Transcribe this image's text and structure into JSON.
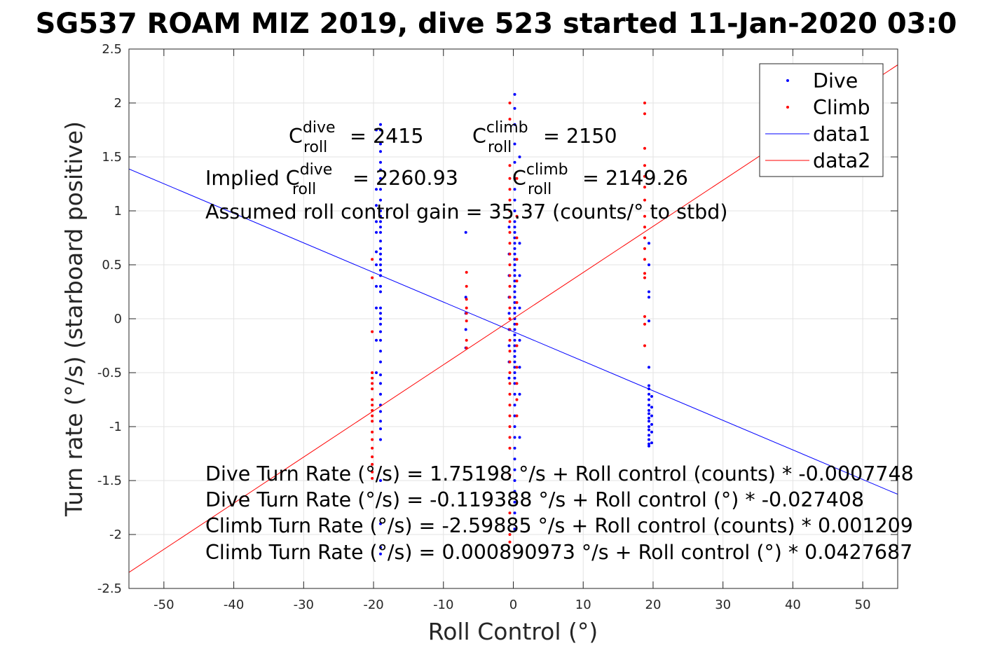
{
  "chart_data": {
    "type": "scatter",
    "title": "SG537 ROAM MIZ 2019, dive 523 started 11-Jan-2020 03:0",
    "xlabel": "Roll Control (°)",
    "ylabel": "Turn rate (°/s) (starboard positive)",
    "xlim": [
      -55,
      55
    ],
    "ylim": [
      -2.5,
      2.5
    ],
    "xticks": [
      -50,
      -40,
      -30,
      -20,
      -10,
      0,
      10,
      20,
      30,
      40,
      50
    ],
    "yticks": [
      2.5,
      2,
      1.5,
      1,
      0.5,
      0,
      -0.5,
      -1,
      -1.5,
      -2,
      -2.5
    ],
    "xtick_labels": [
      "-50",
      "-40",
      "-30",
      "-20",
      "-10",
      "0",
      "10",
      "20",
      "30",
      "40",
      "50"
    ],
    "ytick_labels": [
      "2.5",
      "2",
      "1.5",
      "1",
      "0.5",
      "0",
      "-0.5",
      "-1",
      "-1.5",
      "-2",
      "-2.5"
    ],
    "grid": true,
    "legend_position": "top-right",
    "legend": [
      "Dive",
      "Climb",
      "data1",
      "data2"
    ],
    "series": [
      {
        "name": "Dive",
        "kind": "points",
        "color": "#0000ff",
        "clusters": [
          {
            "x": -19,
            "y": [
              1.8,
              1.75,
              1.62,
              1.55,
              1.45,
              1.38,
              1.3,
              1.2,
              1.1,
              1.0,
              0.95,
              0.9,
              0.85,
              0.8,
              0.72,
              0.65,
              0.6,
              0.55,
              0.5,
              0.45,
              0.4,
              0.3,
              0.25,
              0.1,
              0.05,
              0.0,
              -0.05,
              -0.12,
              -0.2,
              -0.3,
              -0.4,
              -0.52,
              -0.6,
              -0.7,
              -0.8,
              -0.86,
              -0.95,
              -1.02,
              -1.12,
              -1.5,
              -1.9,
              -2.12,
              -2.18
            ]
          },
          {
            "x": -19.6,
            "y": [
              1.75,
              1.2,
              1.05,
              0.9,
              0.8,
              0.62,
              0.5,
              0.3,
              0.1,
              -0.2,
              -0.5
            ]
          },
          {
            "x": -6.8,
            "y": [
              0.8,
              0.2,
              0.05,
              -0.1,
              -0.27
            ]
          },
          {
            "x": 0.2,
            "y": [
              2.08,
              1.95,
              1.8,
              1.62,
              1.45,
              1.3,
              1.2,
              1.1,
              1.0,
              0.9,
              0.85,
              0.8,
              0.75,
              0.7,
              0.65,
              0.6,
              0.55,
              0.5,
              0.45,
              0.4,
              0.35,
              0.3,
              0.25,
              0.2,
              0.15,
              0.1,
              0.05,
              0.0,
              -0.05,
              -0.1,
              -0.15,
              -0.2,
              -0.25,
              -0.3,
              -0.35,
              -0.4,
              -0.45,
              -0.5,
              -0.55,
              -0.6,
              -0.7,
              -0.8,
              -0.9,
              -1.0,
              -1.1,
              -1.2,
              -1.3,
              -1.4,
              -1.5,
              -1.6,
              -1.7,
              -1.8,
              -1.95
            ]
          },
          {
            "x": -0.6,
            "y": [
              0.85,
              0.6,
              0.4,
              0.2,
              0.05,
              -0.1,
              -0.25,
              -0.4,
              -0.55
            ]
          },
          {
            "x": 0.9,
            "y": [
              1.5,
              0.7,
              0.4,
              0.1,
              -0.2,
              -0.45,
              -0.7,
              -1.1
            ]
          },
          {
            "x": 19.4,
            "y": [
              0.7,
              0.5,
              0.25,
              0.2,
              -0.02,
              -0.45,
              -0.62,
              -0.65,
              -0.7,
              -0.75,
              -0.8,
              -0.85,
              -0.88,
              -0.92,
              -0.95,
              -1.0,
              -1.03,
              -1.08,
              -1.12,
              -1.16,
              -1.18
            ]
          },
          {
            "x": 19.8,
            "y": [
              -0.72,
              -0.82,
              -0.9,
              -0.98,
              -1.05,
              -1.15
            ]
          }
        ]
      },
      {
        "name": "Climb",
        "kind": "points",
        "color": "#ff0000",
        "clusters": [
          {
            "x": -20.2,
            "y": [
              0.55,
              0.38,
              -0.12,
              -0.5,
              -0.55,
              -0.6,
              -0.65,
              -0.75,
              -0.8,
              -0.85,
              -0.9,
              -0.95,
              -1.05,
              -1.12,
              -1.2,
              -1.28,
              -1.35,
              -1.42,
              -1.48
            ]
          },
          {
            "x": -6.7,
            "y": [
              0.43,
              0.3,
              0.18,
              0.1,
              0.05,
              -0.02,
              -0.2,
              -0.27
            ]
          },
          {
            "x": -0.5,
            "y": [
              2.0,
              1.85,
              1.42,
              1.3,
              1.2,
              1.1,
              1.0,
              0.9,
              0.8,
              0.7,
              0.6,
              0.5,
              0.4,
              0.3,
              0.2,
              0.1,
              0.0,
              -0.1,
              -0.2,
              -0.3,
              -0.4,
              -0.5,
              -0.6,
              -0.7,
              -0.8,
              -0.9,
              -1.0,
              -1.1,
              -1.2,
              -1.45,
              -1.8,
              -2.0,
              -2.07
            ]
          },
          {
            "x": 0.5,
            "y": [
              1.3,
              0.95,
              0.75,
              0.55,
              0.35,
              0.15,
              -0.05,
              -0.25,
              -0.45,
              -0.6,
              -0.75,
              -0.9
            ]
          },
          {
            "x": 18.8,
            "y": [
              2.0,
              1.9,
              1.58,
              1.42,
              1.32,
              1.22,
              1.1,
              0.95,
              0.85,
              0.75,
              0.65,
              0.55,
              0.42,
              0.38,
              0.02,
              -0.05,
              -0.25
            ]
          }
        ]
      },
      {
        "name": "data1",
        "kind": "line",
        "color": "#0000ff",
        "x": [
          -55,
          55
        ],
        "y": [
          1.388,
          -1.627
        ]
      },
      {
        "name": "data2",
        "kind": "line",
        "color": "#ff0000",
        "x": [
          -55,
          55
        ],
        "y": [
          -2.351,
          2.353
        ]
      }
    ],
    "annotations": {
      "line1": {
        "a_base": "C",
        "a_sup": "dive",
        "a_sub": "roll",
        "a_rest": " = 2415",
        "b_base": "C",
        "b_sup": "climb",
        "b_sub": "roll",
        "b_rest": " = 2150"
      },
      "line2": {
        "prefix": "Implied C",
        "a_sup": "dive",
        "a_sub": "roll",
        "a_rest": " = 2260.93",
        "b_base": "C",
        "b_sup": "climb",
        "b_sub": "roll",
        "b_rest": " = 2149.26"
      },
      "line3": "Assumed roll control gain = 35.37 (counts/° to stbd)",
      "fits": [
        "Dive Turn Rate (°/s) = 1.75198 °/s + Roll control (counts) * -0.0007748",
        "Dive Turn Rate (°/s) = -0.119388 °/s + Roll control (°) * -0.027408",
        "Climb Turn Rate (°/s) = -2.59885 °/s + Roll control (counts) * 0.001209",
        "Climb Turn Rate (°/s) = 0.000890973 °/s + Roll control (°) * 0.0427687"
      ]
    }
  }
}
